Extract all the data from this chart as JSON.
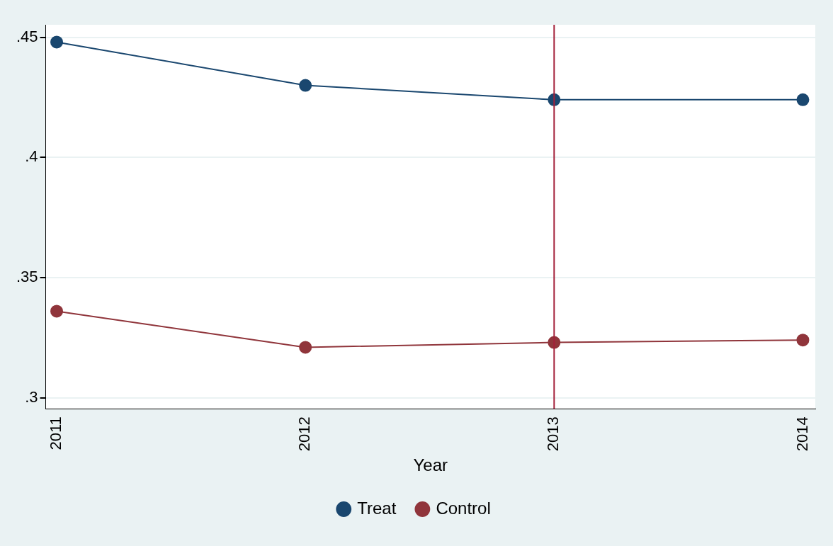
{
  "chart_data": {
    "type": "line",
    "xlabel": "Year",
    "x": [
      2011,
      2012,
      2013,
      2014
    ],
    "xlim": [
      2010.956,
      2014.05
    ],
    "xticks": [
      2011,
      2012,
      2013,
      2014
    ],
    "ylim": [
      0.2954,
      0.4552
    ],
    "yticks": [
      {
        "value": 0.3,
        "label": ".3"
      },
      {
        "value": 0.35,
        "label": ".35"
      },
      {
        "value": 0.4,
        "label": ".4"
      },
      {
        "value": 0.45,
        "label": ".45"
      }
    ],
    "series": [
      {
        "name": "Treat",
        "color": "#1a476f",
        "values": [
          0.448,
          0.43,
          0.424,
          0.424
        ]
      },
      {
        "name": "Control",
        "color": "#90353b",
        "values": [
          0.336,
          0.321,
          0.323,
          0.324
        ]
      }
    ],
    "ref_lines": [
      {
        "axis": "x",
        "value": 2013,
        "color": "#a3203a"
      }
    ],
    "grid": "y",
    "legend": "bottom",
    "marker": "circle",
    "line_style": "solid"
  }
}
